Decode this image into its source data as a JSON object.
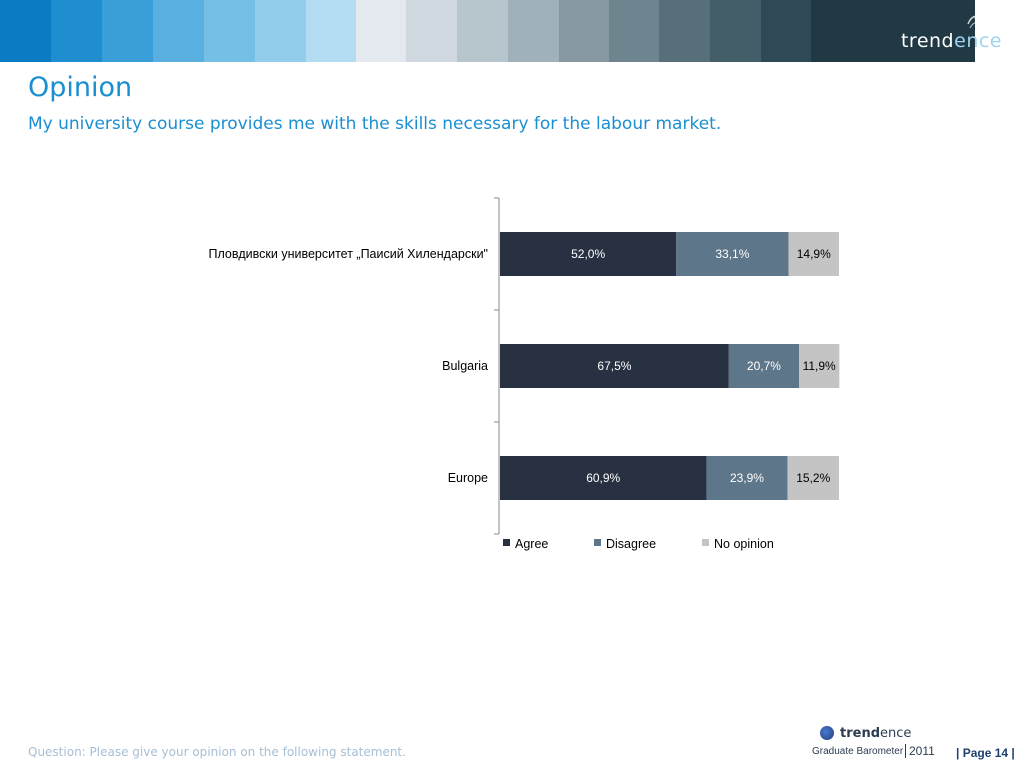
{
  "header": {
    "band_colors": [
      "#0b7bc4",
      "#1f8ed1",
      "#3a9ed9",
      "#58afe0",
      "#75bee6",
      "#94cdec",
      "#b3dcf2",
      "#e3e9ee",
      "#cfd9df",
      "#b7c5cd",
      "#9fb1bb",
      "#8699a3",
      "#6e858f",
      "#576f7b",
      "#435d69",
      "#2f4a56",
      "#203945"
    ],
    "logo_text_main": "trend",
    "logo_text_accent": "ence"
  },
  "page": {
    "title": "Opinion",
    "subtitle": "My university course provides me with the skills necessary for the labour market."
  },
  "chart_data": {
    "type": "bar",
    "orientation": "horizontal",
    "stacked": true,
    "percent_stacked": true,
    "categories": [
      "Пловдивски университет „Паисий Хилендарски\"",
      "Bulgaria",
      "Europe"
    ],
    "series": [
      {
        "name": "Agree",
        "color": "#283142",
        "values": [
          52.0,
          67.5,
          60.9
        ],
        "labels": [
          "52,0%",
          "67,5%",
          "60,9%"
        ]
      },
      {
        "name": "Disagree",
        "color": "#5e768a",
        "values": [
          33.1,
          20.7,
          23.9
        ],
        "labels": [
          "33,1%",
          "20,7%",
          "23,9%"
        ]
      },
      {
        "name": "No opinion",
        "color": "#c4c4c4",
        "values": [
          14.9,
          11.9,
          15.2
        ],
        "labels": [
          "14,9%",
          "11,9%",
          "15,2%"
        ]
      }
    ],
    "xlim": [
      0,
      100
    ],
    "legend_position": "bottom",
    "grid": false
  },
  "footer": {
    "question": "Question: Please give your opinion on the following statement.",
    "logo_name_bold": "trend",
    "logo_name_light": "ence",
    "logo_sub": "Graduate Barometer",
    "logo_year": "2011",
    "page": "| Page 14 |"
  }
}
